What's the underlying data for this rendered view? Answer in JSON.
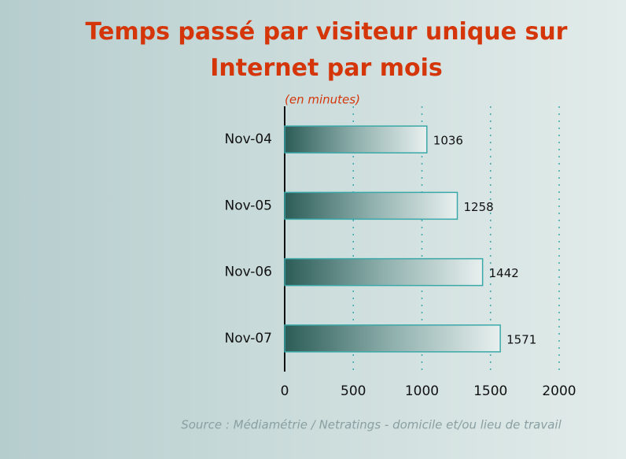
{
  "chart_data": {
    "type": "bar",
    "orientation": "horizontal",
    "title": "Temps passé par visiteur unique sur Internet par mois",
    "subtitle": "(en minutes)",
    "source": "Source : Médiamétrie / Netratings - domicile et/ou lieu de travail",
    "categories": [
      "Nov-04",
      "Nov-05",
      "Nov-06",
      "Nov-07"
    ],
    "values": [
      1036,
      1258,
      1442,
      1571
    ],
    "color": "#2f5f5a",
    "xlim": [
      0,
      2000
    ],
    "xticks": [
      0,
      500,
      1000,
      1500,
      2000
    ],
    "grid": true
  }
}
